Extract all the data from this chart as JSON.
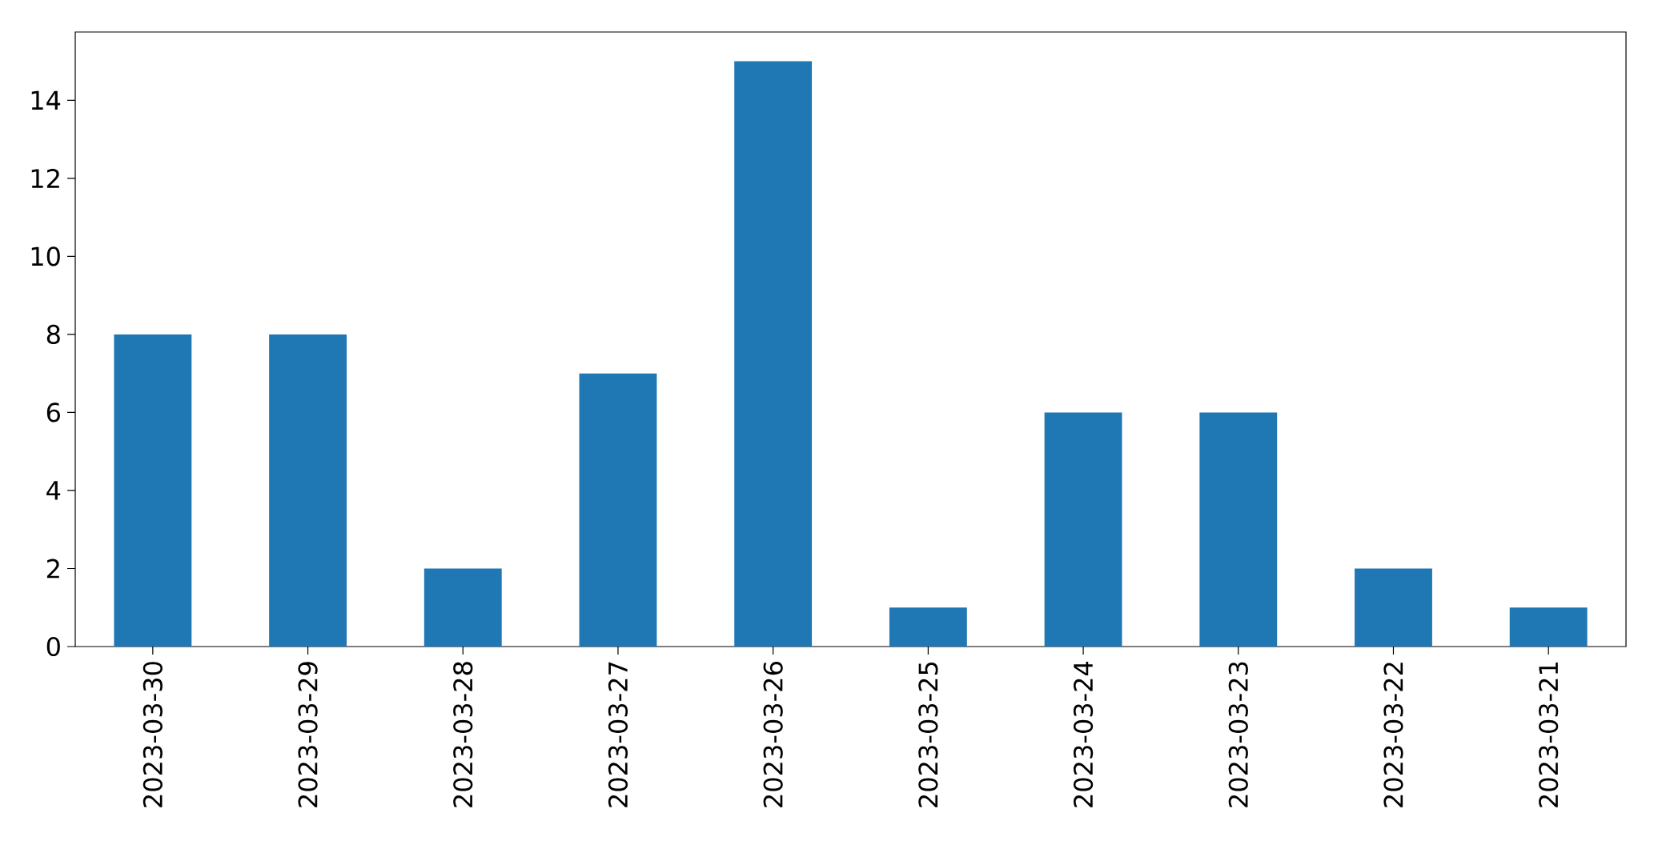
{
  "chart_data": {
    "type": "bar",
    "categories": [
      "2023-03-30",
      "2023-03-29",
      "2023-03-28",
      "2023-03-27",
      "2023-03-26",
      "2023-03-25",
      "2023-03-24",
      "2023-03-23",
      "2023-03-22",
      "2023-03-21"
    ],
    "values": [
      8,
      8,
      2,
      7,
      15,
      1,
      6,
      6,
      2,
      1
    ],
    "color": "#1f77b4",
    "ylim": [
      0,
      15.75
    ],
    "yticks": [
      0,
      2,
      4,
      6,
      8,
      10,
      12,
      14
    ],
    "grid": false
  }
}
